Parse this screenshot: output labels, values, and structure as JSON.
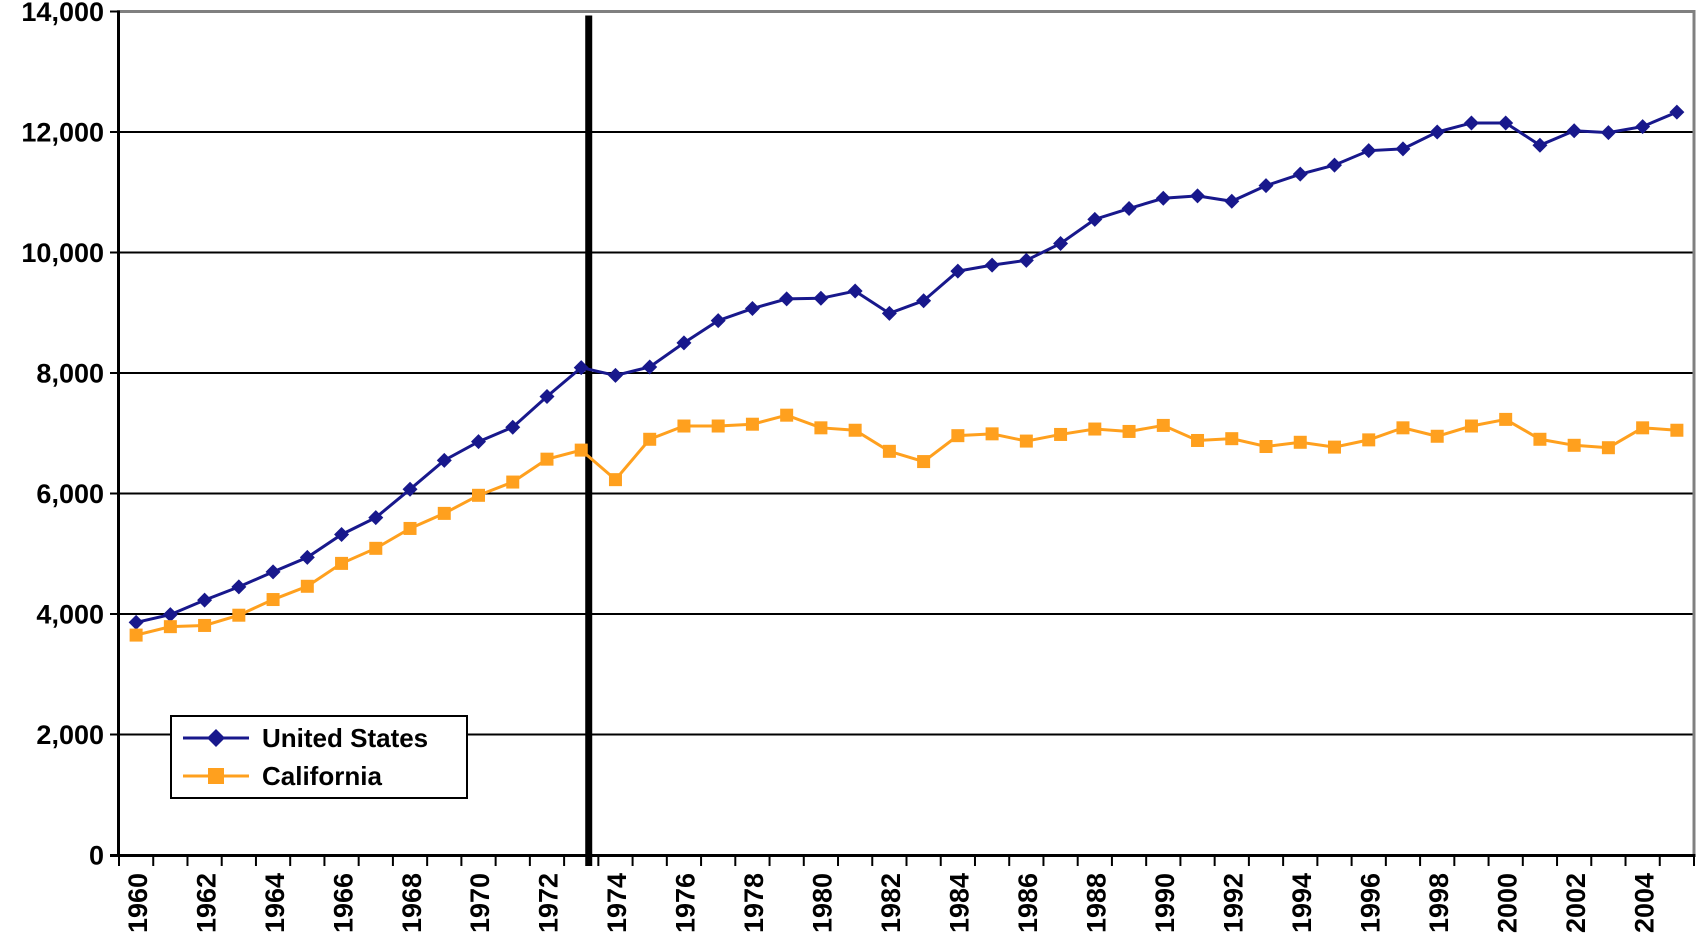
{
  "chart_data": {
    "type": "line",
    "title": "",
    "xlabel": "",
    "ylabel": "",
    "categories": [
      1960,
      1961,
      1962,
      1963,
      1964,
      1965,
      1966,
      1967,
      1968,
      1969,
      1970,
      1971,
      1972,
      1973,
      1974,
      1975,
      1976,
      1977,
      1978,
      1979,
      1980,
      1981,
      1982,
      1983,
      1984,
      1985,
      1986,
      1987,
      1988,
      1989,
      1990,
      1991,
      1992,
      1993,
      1994,
      1995,
      1996,
      1997,
      1998,
      1999,
      2000,
      2001,
      2002,
      2003,
      2004,
      2005
    ],
    "series": [
      {
        "name": "United States",
        "marker": "diamond",
        "color": "#18188C",
        "values": [
          3860,
          3990,
          4230,
          4450,
          4700,
          4940,
          5320,
          5600,
          6070,
          6550,
          6860,
          7100,
          7610,
          8090,
          7960,
          8100,
          8500,
          8870,
          9070,
          9230,
          9240,
          9360,
          8990,
          9200,
          9690,
          9790,
          9870,
          10150,
          10550,
          10730,
          10900,
          10940,
          10850,
          11110,
          11300,
          11450,
          11690,
          11720,
          12000,
          12150,
          12150,
          11780,
          12020,
          11990,
          12090,
          12330
        ]
      },
      {
        "name": "California",
        "marker": "square",
        "color": "#FFA01E",
        "values": [
          3650,
          3790,
          3810,
          3980,
          4240,
          4460,
          4840,
          5090,
          5420,
          5670,
          5970,
          6190,
          6570,
          6720,
          6230,
          6900,
          7120,
          7120,
          7150,
          7300,
          7090,
          7050,
          6700,
          6530,
          6960,
          6990,
          6870,
          6980,
          7070,
          7030,
          7130,
          6880,
          6910,
          6780,
          6850,
          6770,
          6890,
          7090,
          6950,
          7120,
          7230,
          6900,
          6800,
          6760,
          7090,
          7050
        ]
      }
    ],
    "ylim": [
      0,
      14000
    ],
    "y_tick_step": 2000,
    "y_tick_labels": [
      "0",
      "2,000",
      "4,000",
      "6,000",
      "8,000",
      "10,000",
      "12,000",
      "14,000"
    ],
    "x_tick_labels": [
      "1960",
      "1962",
      "1964",
      "1966",
      "1968",
      "1970",
      "1972",
      "1974",
      "1976",
      "1978",
      "1980",
      "1982",
      "1984",
      "1986",
      "1988",
      "1990",
      "1992",
      "1994",
      "1996",
      "1998",
      "2000",
      "2002",
      "2004"
    ],
    "grid": "horizontal gridlines on, black",
    "legend_position": "inside lower-left",
    "event_line": {
      "after_year": 1973,
      "color": "#000000",
      "orientation": "vertical",
      "thickness_px": 7
    },
    "axis_color": "#000000",
    "outer_border_color": "#808080",
    "background_color": "#FFFFFF"
  }
}
